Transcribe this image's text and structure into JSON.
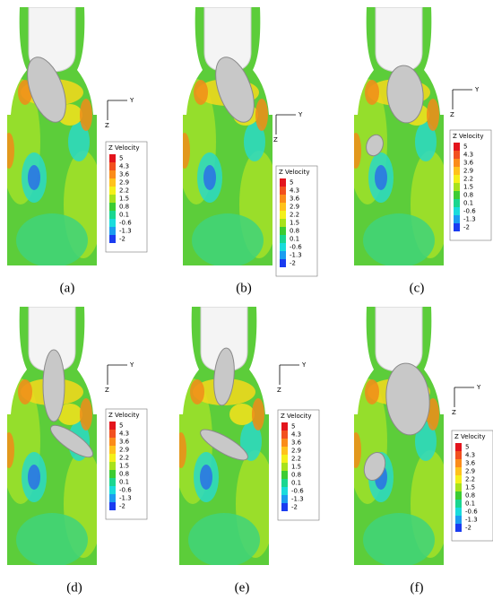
{
  "axes": {
    "y": "Y",
    "z": "Z"
  },
  "legend": {
    "title": "Z Velocity",
    "levels": [
      5,
      4.3,
      3.6,
      2.9,
      2.2,
      1.5,
      0.8,
      0.1,
      -0.6,
      -1.3,
      -2
    ],
    "colors": [
      "#e3141c",
      "#f2501e",
      "#fb8c1a",
      "#ffc21c",
      "#f4f01a",
      "#a8e21c",
      "#3ccc32",
      "#1ad690",
      "#19dcdc",
      "#1b9cf0",
      "#1a3cf0"
    ]
  },
  "panels": [
    {
      "label": "(a)"
    },
    {
      "label": "(b)"
    },
    {
      "label": "(c)"
    },
    {
      "label": "(d)"
    },
    {
      "label": "(e)"
    },
    {
      "label": "(f)"
    }
  ]
}
